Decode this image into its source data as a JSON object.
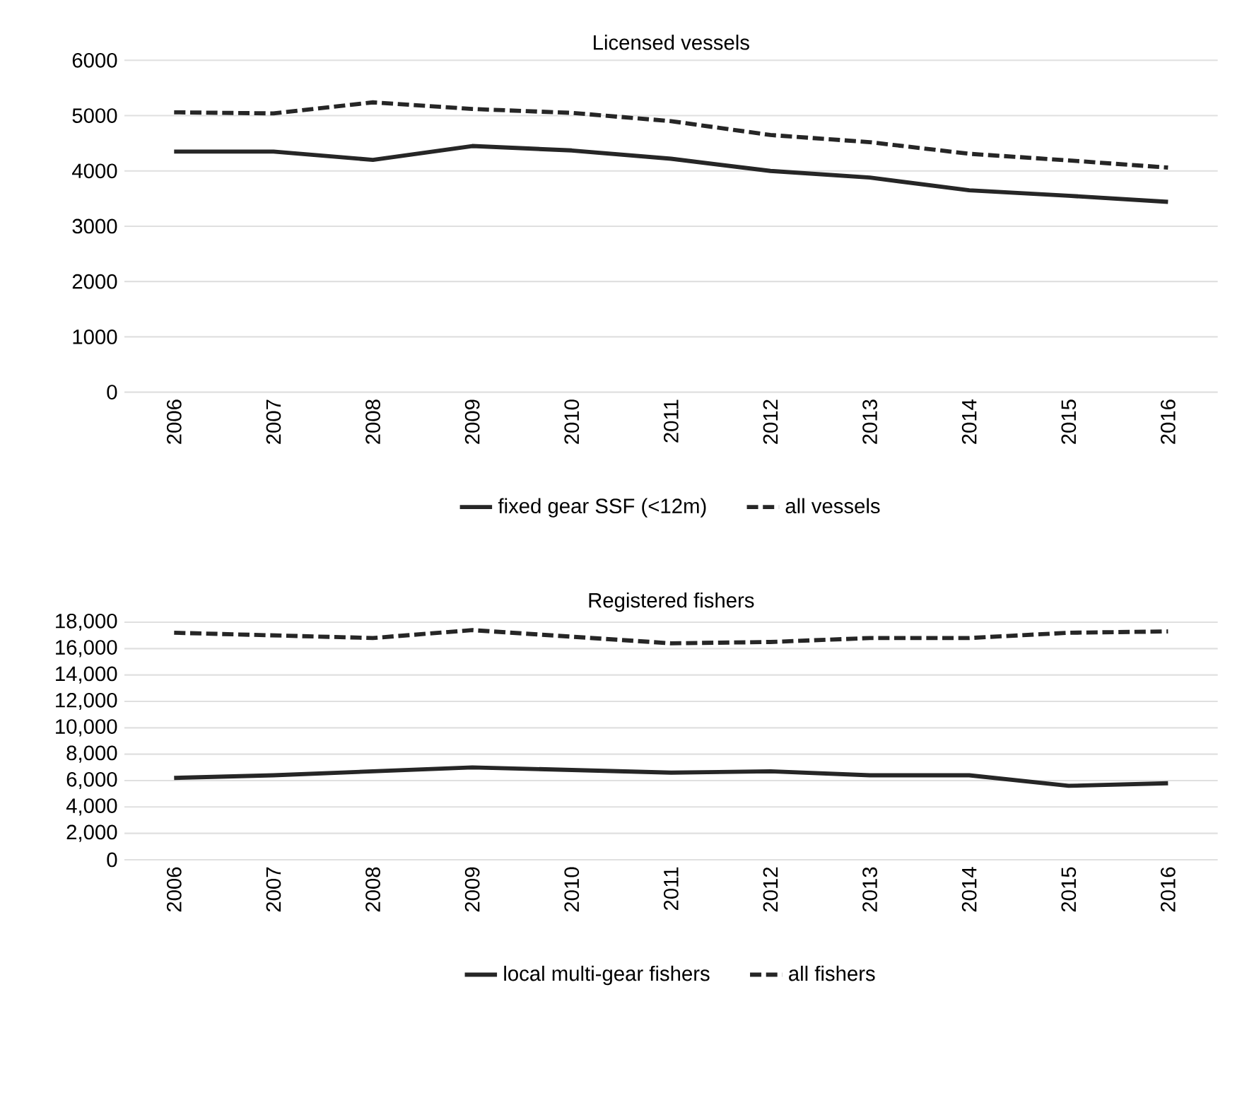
{
  "chart_data": [
    {
      "type": "line",
      "title": "Licensed vessels",
      "categories": [
        "2006",
        "2007",
        "2008",
        "2009",
        "2010",
        "2011",
        "2012",
        "2013",
        "2014",
        "2015",
        "2016"
      ],
      "series": [
        {
          "name": "fixed gear SSF (<12m)",
          "color": "#262626",
          "line_style": "solid",
          "values": [
            4350,
            4350,
            4200,
            4450,
            4370,
            4220,
            4000,
            3880,
            3650,
            3550,
            3440
          ]
        },
        {
          "name": "all vessels",
          "color": "#262626",
          "line_style": "dashed",
          "values": [
            5060,
            5040,
            5240,
            5120,
            5050,
            4900,
            4650,
            4520,
            4310,
            4190,
            4060
          ]
        }
      ],
      "ylim": [
        0,
        6000
      ],
      "yticks": [
        0,
        1000,
        2000,
        3000,
        4000,
        5000,
        6000
      ],
      "grid": "y",
      "legend": "bottom"
    },
    {
      "type": "line",
      "title": "Registered fishers",
      "categories": [
        "2006",
        "2007",
        "2008",
        "2009",
        "2010",
        "2011",
        "2012",
        "2013",
        "2014",
        "2015",
        "2016"
      ],
      "series": [
        {
          "name": "local multi-gear fishers",
          "color": "#262626",
          "line_style": "solid",
          "values": [
            6200,
            6400,
            6700,
            7000,
            6800,
            6600,
            6700,
            6400,
            6400,
            5600,
            5800
          ]
        },
        {
          "name": "all fishers",
          "color": "#262626",
          "line_style": "dashed",
          "values": [
            17200,
            17000,
            16800,
            17400,
            16900,
            16400,
            16500,
            16800,
            16800,
            17200,
            17300
          ]
        }
      ],
      "ylim": [
        0,
        18000
      ],
      "yticks": [
        0,
        {
          "value": 2000,
          "label": "2,000"
        },
        {
          "value": 4000,
          "label": "4,000"
        },
        {
          "value": 6000,
          "label": "6,000"
        },
        {
          "value": 8000,
          "label": "8,000"
        },
        {
          "value": 10000,
          "label": "10,000"
        },
        {
          "value": 12000,
          "label": "12,000"
        },
        {
          "value": 14000,
          "label": "14,000"
        },
        {
          "value": 16000,
          "label": "16,000"
        },
        {
          "value": 18000,
          "label": "18,000"
        }
      ],
      "grid": "y",
      "legend": "bottom"
    }
  ]
}
